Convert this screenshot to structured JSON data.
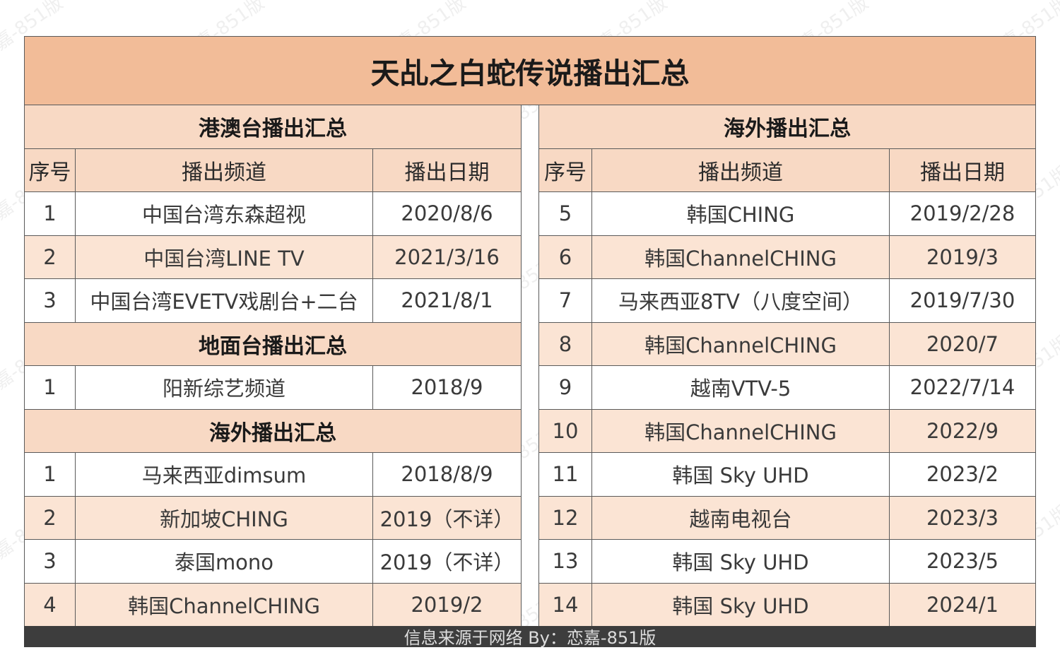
{
  "title": "天乩之白蛇传说播出汇总",
  "left": {
    "hk_section": "港澳台播出汇总",
    "headers": [
      "序号",
      "播出频道",
      "播出日期"
    ],
    "hk_rows": [
      [
        "1",
        "中国台湾东森超视",
        "2020/8/6"
      ],
      [
        "2",
        "中国台湾LINE TV",
        "2021/3/16"
      ],
      [
        "3",
        "中国台湾EVETV戏剧台+二台",
        "2021/8/1"
      ]
    ],
    "terrestrial_section": "地面台播出汇总",
    "terrestrial_rows": [
      [
        "1",
        "阳新综艺频道",
        "2018/9"
      ]
    ],
    "overseas_section": "海外播出汇总",
    "overseas_rows": [
      [
        "1",
        "马来西亚dimsum",
        "2018/8/9"
      ],
      [
        "2",
        "新加坡CHING",
        "2019（不详）"
      ],
      [
        "3",
        "泰国mono",
        "2019（不详）"
      ],
      [
        "4",
        "韩国ChannelCHING",
        "2019/2"
      ]
    ]
  },
  "right": {
    "overseas_section": "海外播出汇总",
    "headers": [
      "序号",
      "播出频道",
      "播出日期"
    ],
    "rows": [
      [
        "5",
        "韩国CHING",
        "2019/2/28"
      ],
      [
        "6",
        "韩国ChannelCHING",
        "2019/3"
      ],
      [
        "7",
        "马来西亚8TV（八度空间）",
        "2019/7/30"
      ],
      [
        "8",
        "韩国ChannelCHING",
        "2020/7"
      ],
      [
        "9",
        "越南VTV-5",
        "2022/7/14"
      ],
      [
        "10",
        "韩国ChannelCHING",
        "2022/9"
      ],
      [
        "11",
        "韩国 Sky UHD",
        "2023/2"
      ],
      [
        "12",
        "越南电视台",
        "2023/3"
      ],
      [
        "13",
        "韩国 Sky UHD",
        "2023/5"
      ],
      [
        "14",
        "韩国 Sky UHD",
        "2024/1"
      ]
    ]
  },
  "footer": "信息来源于网络  By：恋嘉-851版",
  "watermark": "恋嘉-851版",
  "colors": {
    "title_bg": "#f2bc98",
    "section_bg": "#f8d9c4",
    "shaded_row_bg": "#fbe4d4",
    "footer_bg": "#3d3d3d"
  }
}
